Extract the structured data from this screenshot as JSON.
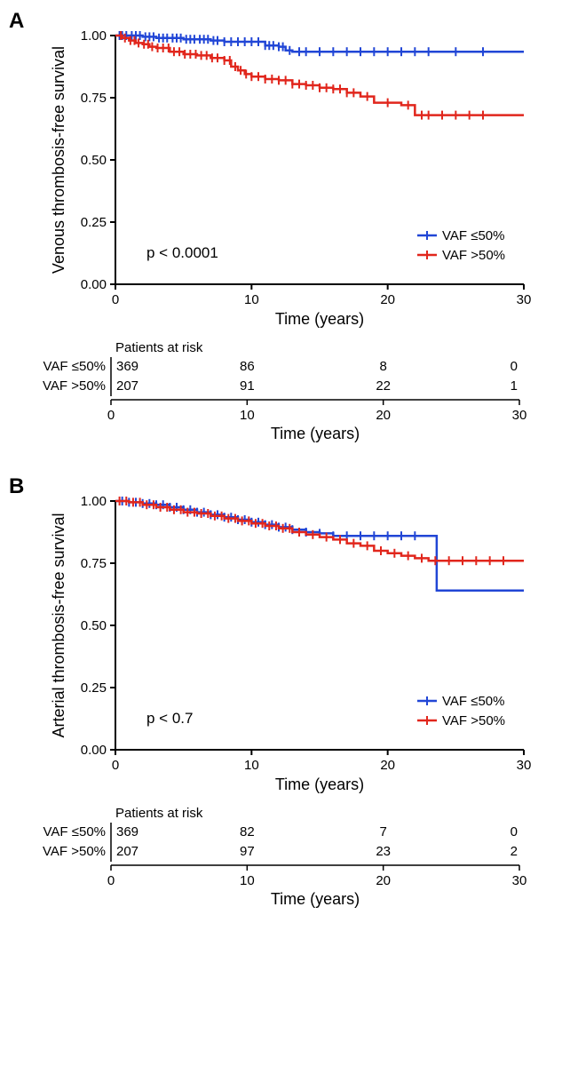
{
  "panels": [
    {
      "label": "A",
      "chart": {
        "ylabel": "Venous thrombosis-free survival",
        "xlabel": "Time (years)",
        "pvalue": "p < 0.0001",
        "xlim": [
          0,
          30
        ],
        "ylim": [
          0,
          1.0
        ],
        "xticks": [
          0,
          10,
          20,
          30
        ],
        "yticks": [
          0.0,
          0.25,
          0.5,
          0.75,
          1.0
        ],
        "ytick_labels": [
          "0.00",
          "0.25",
          "0.50",
          "0.75",
          "1.00"
        ],
        "background": "#ffffff",
        "axis_color": "#000000",
        "line_width": 2.5,
        "font_size_axis": 18,
        "font_size_tick": 15,
        "legend": {
          "items": [
            {
              "label": "VAF ≤50%",
              "color": "#2146d6"
            },
            {
              "label": "VAF >50%",
              "color": "#e1261c"
            }
          ],
          "position": "right"
        },
        "series": [
          {
            "name": "VAF ≤50%",
            "color": "#2146d6",
            "points": [
              [
                0,
                1.0
              ],
              [
                1,
                1.0
              ],
              [
                2,
                0.995
              ],
              [
                3,
                0.99
              ],
              [
                4,
                0.99
              ],
              [
                5,
                0.985
              ],
              [
                6,
                0.985
              ],
              [
                7,
                0.98
              ],
              [
                8,
                0.975
              ],
              [
                9,
                0.975
              ],
              [
                10,
                0.975
              ],
              [
                11,
                0.96
              ],
              [
                12,
                0.955
              ],
              [
                12.5,
                0.94
              ],
              [
                13,
                0.935
              ],
              [
                14,
                0.935
              ],
              [
                16,
                0.935
              ],
              [
                18,
                0.935
              ],
              [
                20,
                0.935
              ],
              [
                25,
                0.935
              ],
              [
                30,
                0.935
              ]
            ],
            "censor_x": [
              0.3,
              0.5,
              0.8,
              1.2,
              1.5,
              1.8,
              2.2,
              2.5,
              2.8,
              3.2,
              3.5,
              3.8,
              4.2,
              4.5,
              4.8,
              5.2,
              5.5,
              5.8,
              6.2,
              6.5,
              6.8,
              7.2,
              7.5,
              8,
              8.5,
              9,
              9.5,
              10,
              10.5,
              11,
              11.3,
              11.6,
              12,
              12.3,
              12.8,
              13.5,
              14,
              15,
              16,
              17,
              18,
              19,
              20,
              21,
              22,
              23,
              25,
              27
            ]
          },
          {
            "name": "VAF >50%",
            "color": "#e1261c",
            "points": [
              [
                0,
                1.0
              ],
              [
                0.5,
                0.99
              ],
              [
                1,
                0.98
              ],
              [
                1.5,
                0.97
              ],
              [
                2,
                0.965
              ],
              [
                2.5,
                0.955
              ],
              [
                3,
                0.95
              ],
              [
                4,
                0.935
              ],
              [
                5,
                0.925
              ],
              [
                6,
                0.92
              ],
              [
                7,
                0.91
              ],
              [
                8,
                0.9
              ],
              [
                8.5,
                0.875
              ],
              [
                9,
                0.86
              ],
              [
                9.5,
                0.845
              ],
              [
                10,
                0.835
              ],
              [
                11,
                0.825
              ],
              [
                12,
                0.82
              ],
              [
                13,
                0.805
              ],
              [
                14,
                0.8
              ],
              [
                15,
                0.79
              ],
              [
                16,
                0.785
              ],
              [
                17,
                0.77
              ],
              [
                18,
                0.755
              ],
              [
                19,
                0.73
              ],
              [
                20,
                0.73
              ],
              [
                21,
                0.72
              ],
              [
                22,
                0.68
              ],
              [
                23,
                0.68
              ],
              [
                25,
                0.68
              ],
              [
                30,
                0.68
              ]
            ],
            "censor_x": [
              0.4,
              0.7,
              1.1,
              1.4,
              1.7,
              2.1,
              2.4,
              2.7,
              3.1,
              3.5,
              3.9,
              4.3,
              4.7,
              5.1,
              5.5,
              5.9,
              6.3,
              6.7,
              7.1,
              7.5,
              8,
              8.4,
              8.8,
              9.2,
              9.6,
              10,
              10.5,
              11,
              11.5,
              12,
              12.5,
              13,
              13.5,
              14,
              14.5,
              15,
              15.5,
              16,
              16.5,
              17,
              17.5,
              18.5,
              20,
              21.5,
              22.5,
              23,
              24,
              25,
              26,
              27
            ]
          }
        ]
      },
      "risk_table": {
        "title": "Patients at risk",
        "xlabel": "Time (years)",
        "xticks": [
          0,
          10,
          20,
          30
        ],
        "rows": [
          {
            "label": "VAF ≤50%",
            "values": [
              369,
              86,
              8,
              0
            ]
          },
          {
            "label": "VAF >50%",
            "values": [
              207,
              91,
              22,
              1
            ]
          }
        ]
      }
    },
    {
      "label": "B",
      "chart": {
        "ylabel": "Arterial thrombosis-free survival",
        "xlabel": "Time (years)",
        "pvalue": "p < 0.7",
        "xlim": [
          0,
          30
        ],
        "ylim": [
          0,
          1.0
        ],
        "xticks": [
          0,
          10,
          20,
          30
        ],
        "yticks": [
          0.0,
          0.25,
          0.5,
          0.75,
          1.0
        ],
        "ytick_labels": [
          "0.00",
          "0.25",
          "0.50",
          "0.75",
          "1.00"
        ],
        "background": "#ffffff",
        "axis_color": "#000000",
        "line_width": 2.5,
        "font_size_axis": 18,
        "font_size_tick": 15,
        "legend": {
          "items": [
            {
              "label": "VAF ≤50%",
              "color": "#2146d6"
            },
            {
              "label": "VAF >50%",
              "color": "#e1261c"
            }
          ],
          "position": "right"
        },
        "series": [
          {
            "name": "VAF ≤50%",
            "color": "#2146d6",
            "points": [
              [
                0,
                1.0
              ],
              [
                1,
                0.995
              ],
              [
                2,
                0.99
              ],
              [
                3,
                0.985
              ],
              [
                4,
                0.975
              ],
              [
                5,
                0.965
              ],
              [
                6,
                0.955
              ],
              [
                7,
                0.945
              ],
              [
                8,
                0.935
              ],
              [
                9,
                0.925
              ],
              [
                10,
                0.915
              ],
              [
                11,
                0.905
              ],
              [
                12,
                0.895
              ],
              [
                13,
                0.885
              ],
              [
                14,
                0.875
              ],
              [
                15,
                0.87
              ],
              [
                16,
                0.86
              ],
              [
                17,
                0.86
              ],
              [
                18,
                0.86
              ],
              [
                19,
                0.86
              ],
              [
                20,
                0.86
              ],
              [
                22,
                0.86
              ],
              [
                23.5,
                0.86
              ],
              [
                23.6,
                0.64
              ],
              [
                25,
                0.64
              ],
              [
                30,
                0.64
              ]
            ],
            "censor_x": [
              0.5,
              1,
              1.5,
              2,
              2.5,
              3,
              3.5,
              4,
              4.5,
              5,
              5.5,
              6,
              6.5,
              7,
              7.5,
              8,
              8.5,
              9,
              9.5,
              10,
              10.5,
              11,
              11.5,
              12,
              12.5,
              13,
              14,
              15,
              16,
              17,
              18,
              19,
              20,
              21,
              22
            ]
          },
          {
            "name": "VAF >50%",
            "color": "#e1261c",
            "points": [
              [
                0,
                1.0
              ],
              [
                1,
                0.995
              ],
              [
                2,
                0.985
              ],
              [
                3,
                0.975
              ],
              [
                4,
                0.965
              ],
              [
                5,
                0.955
              ],
              [
                6,
                0.95
              ],
              [
                7,
                0.94
              ],
              [
                8,
                0.93
              ],
              [
                9,
                0.92
              ],
              [
                10,
                0.91
              ],
              [
                11,
                0.9
              ],
              [
                12,
                0.89
              ],
              [
                13,
                0.875
              ],
              [
                14,
                0.865
              ],
              [
                15,
                0.855
              ],
              [
                16,
                0.845
              ],
              [
                17,
                0.83
              ],
              [
                18,
                0.82
              ],
              [
                19,
                0.8
              ],
              [
                20,
                0.79
              ],
              [
                21,
                0.78
              ],
              [
                22,
                0.77
              ],
              [
                23,
                0.76
              ],
              [
                25,
                0.76
              ],
              [
                30,
                0.76
              ]
            ],
            "censor_x": [
              0.3,
              0.8,
              1.3,
              1.8,
              2.3,
              2.8,
              3.3,
              3.8,
              4.3,
              4.8,
              5.3,
              5.8,
              6.3,
              6.8,
              7.3,
              7.8,
              8.3,
              8.8,
              9.3,
              9.8,
              10.3,
              10.8,
              11.3,
              11.8,
              12.3,
              12.8,
              13.5,
              14.5,
              15.5,
              16.5,
              17.5,
              18.5,
              19.5,
              20.5,
              21.5,
              22.5,
              23.5,
              24.5,
              25.5,
              26.5,
              27.5,
              28.5
            ]
          }
        ]
      },
      "risk_table": {
        "title": "Patients at risk",
        "xlabel": "Time (years)",
        "xticks": [
          0,
          10,
          20,
          30
        ],
        "rows": [
          {
            "label": "VAF ≤50%",
            "values": [
              369,
              82,
              7,
              0
            ]
          },
          {
            "label": "VAF >50%",
            "values": [
              207,
              97,
              23,
              2
            ]
          }
        ]
      }
    }
  ]
}
